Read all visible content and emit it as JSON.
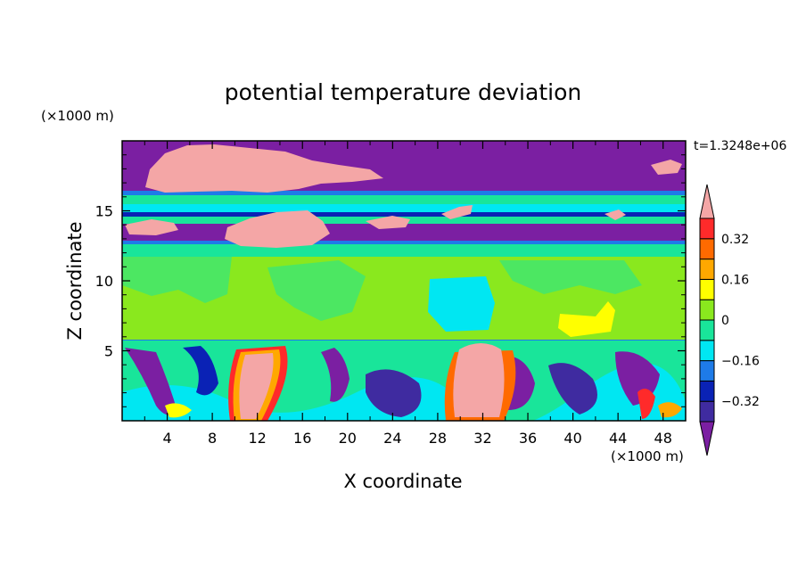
{
  "chart_data": {
    "type": "heatmap",
    "title": "potential temperature deviation",
    "xlabel": "X coordinate",
    "ylabel": "Z coordinate",
    "x_unit_label": "(×1000 m)",
    "y_unit_label": "(×1000 m)",
    "time_label": "t=1.3248e+06",
    "xlim": [
      0,
      50
    ],
    "ylim": [
      0,
      20
    ],
    "x_ticks": [
      4,
      8,
      12,
      16,
      20,
      24,
      28,
      32,
      36,
      40,
      44,
      48
    ],
    "y_ticks": [
      5,
      10,
      15
    ],
    "colorbar": {
      "levels": [
        -0.4,
        -0.32,
        -0.24,
        -0.16,
        -0.08,
        0,
        0.08,
        0.16,
        0.24,
        0.32,
        0.4
      ],
      "tick_labels": [
        "0.32",
        "0.16",
        "0",
        "−0.16",
        "−0.32"
      ],
      "tick_values": [
        0.32,
        0.16,
        0,
        -0.16,
        -0.32
      ],
      "colors_bottom_to_top": [
        "#7b1fa2",
        "#3f2ba0",
        "#0a22b5",
        "#1e7be8",
        "#00e7f2",
        "#19e59a",
        "#8ae81e",
        "#ffff00",
        "#ffa800",
        "#ff6a00",
        "#ff2a2a",
        "#f4a6a6"
      ]
    },
    "regions": [
      {
        "x": [
          0,
          50
        ],
        "z": [
          18.2,
          20
        ],
        "value": -0.38
      },
      {
        "x": [
          0,
          50
        ],
        "z": [
          15.9,
          18.2
        ],
        "value": -0.38
      },
      {
        "x": [
          0,
          50
        ],
        "z": [
          15.2,
          15.9
        ],
        "value": -0.1
      },
      {
        "x": [
          0,
          50
        ],
        "z": [
          14.3,
          15.2
        ],
        "value": -0.04
      },
      {
        "x": [
          0,
          50
        ],
        "z": [
          13.3,
          14.3
        ],
        "value": -0.38
      },
      {
        "x": [
          0,
          50
        ],
        "z": [
          12.6,
          13.3
        ],
        "value": -0.38
      },
      {
        "x": [
          0,
          50
        ],
        "z": [
          11.4,
          12.6
        ],
        "value": -0.02
      },
      {
        "x": [
          0,
          50
        ],
        "z": [
          5.6,
          11.4
        ],
        "value": 0.04
      },
      {
        "x": [
          27,
          34
        ],
        "z": [
          7.0,
          10.3
        ],
        "value": -0.12
      },
      {
        "x": [
          38,
          44
        ],
        "z": [
          6.2,
          8.5
        ],
        "value": 0.14
      },
      {
        "x": [
          0,
          50
        ],
        "z": [
          0,
          5.6
        ],
        "value": -0.2
      },
      {
        "x": [
          29.5,
          34
        ],
        "z": [
          0.5,
          5.4
        ],
        "value": 0.42
      },
      {
        "x": [
          2,
          22
        ],
        "z": [
          16.0,
          19.5
        ],
        "value": 0.42
      },
      {
        "x": [
          9,
          18
        ],
        "z": [
          12.3,
          14.3
        ],
        "value": 0.42
      }
    ]
  }
}
